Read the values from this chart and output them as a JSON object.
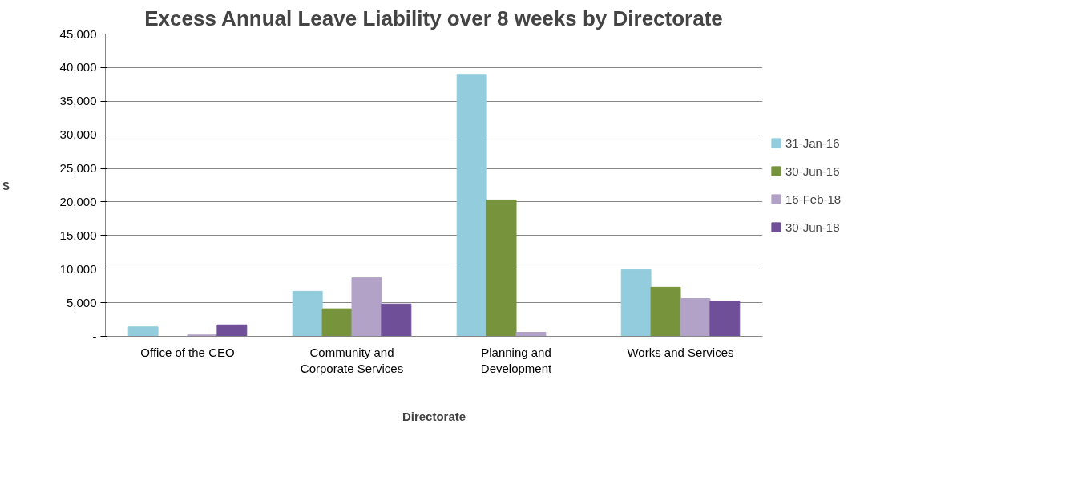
{
  "chart_data": {
    "type": "bar",
    "title": "Excess Annual Leave Liability over 8 weeks by Directorate",
    "xlabel": "Directorate",
    "ylabel": "$",
    "categories": [
      "Office of the CEO",
      "Community and Corporate Services",
      "Planning and Development",
      "Works and Services"
    ],
    "series": [
      {
        "name": "31-Jan-16",
        "color": "#93cddd",
        "values": [
          1400,
          6700,
          39000,
          9900
        ]
      },
      {
        "name": "30-Jun-16",
        "color": "#77933c",
        "values": [
          0,
          4100,
          20300,
          7300
        ]
      },
      {
        "name": "16-Feb-18",
        "color": "#b3a2c7",
        "values": [
          200,
          8700,
          600,
          5600
        ]
      },
      {
        "name": "30-Jun-18",
        "color": "#6e4f98",
        "values": [
          1700,
          4800,
          0,
          5200
        ]
      }
    ],
    "ylim": [
      0,
      45000
    ],
    "yticks": [
      {
        "value": 0,
        "label": "-"
      },
      {
        "value": 5000,
        "label": "5,000"
      },
      {
        "value": 10000,
        "label": "10,000"
      },
      {
        "value": 15000,
        "label": "15,000"
      },
      {
        "value": 20000,
        "label": "20,000"
      },
      {
        "value": 25000,
        "label": "25,000"
      },
      {
        "value": 30000,
        "label": "30,000"
      },
      {
        "value": 35000,
        "label": "35,000"
      },
      {
        "value": 40000,
        "label": "40,000"
      },
      {
        "value": 45000,
        "label": "45,000"
      }
    ],
    "grid": "y",
    "legend": "right"
  }
}
